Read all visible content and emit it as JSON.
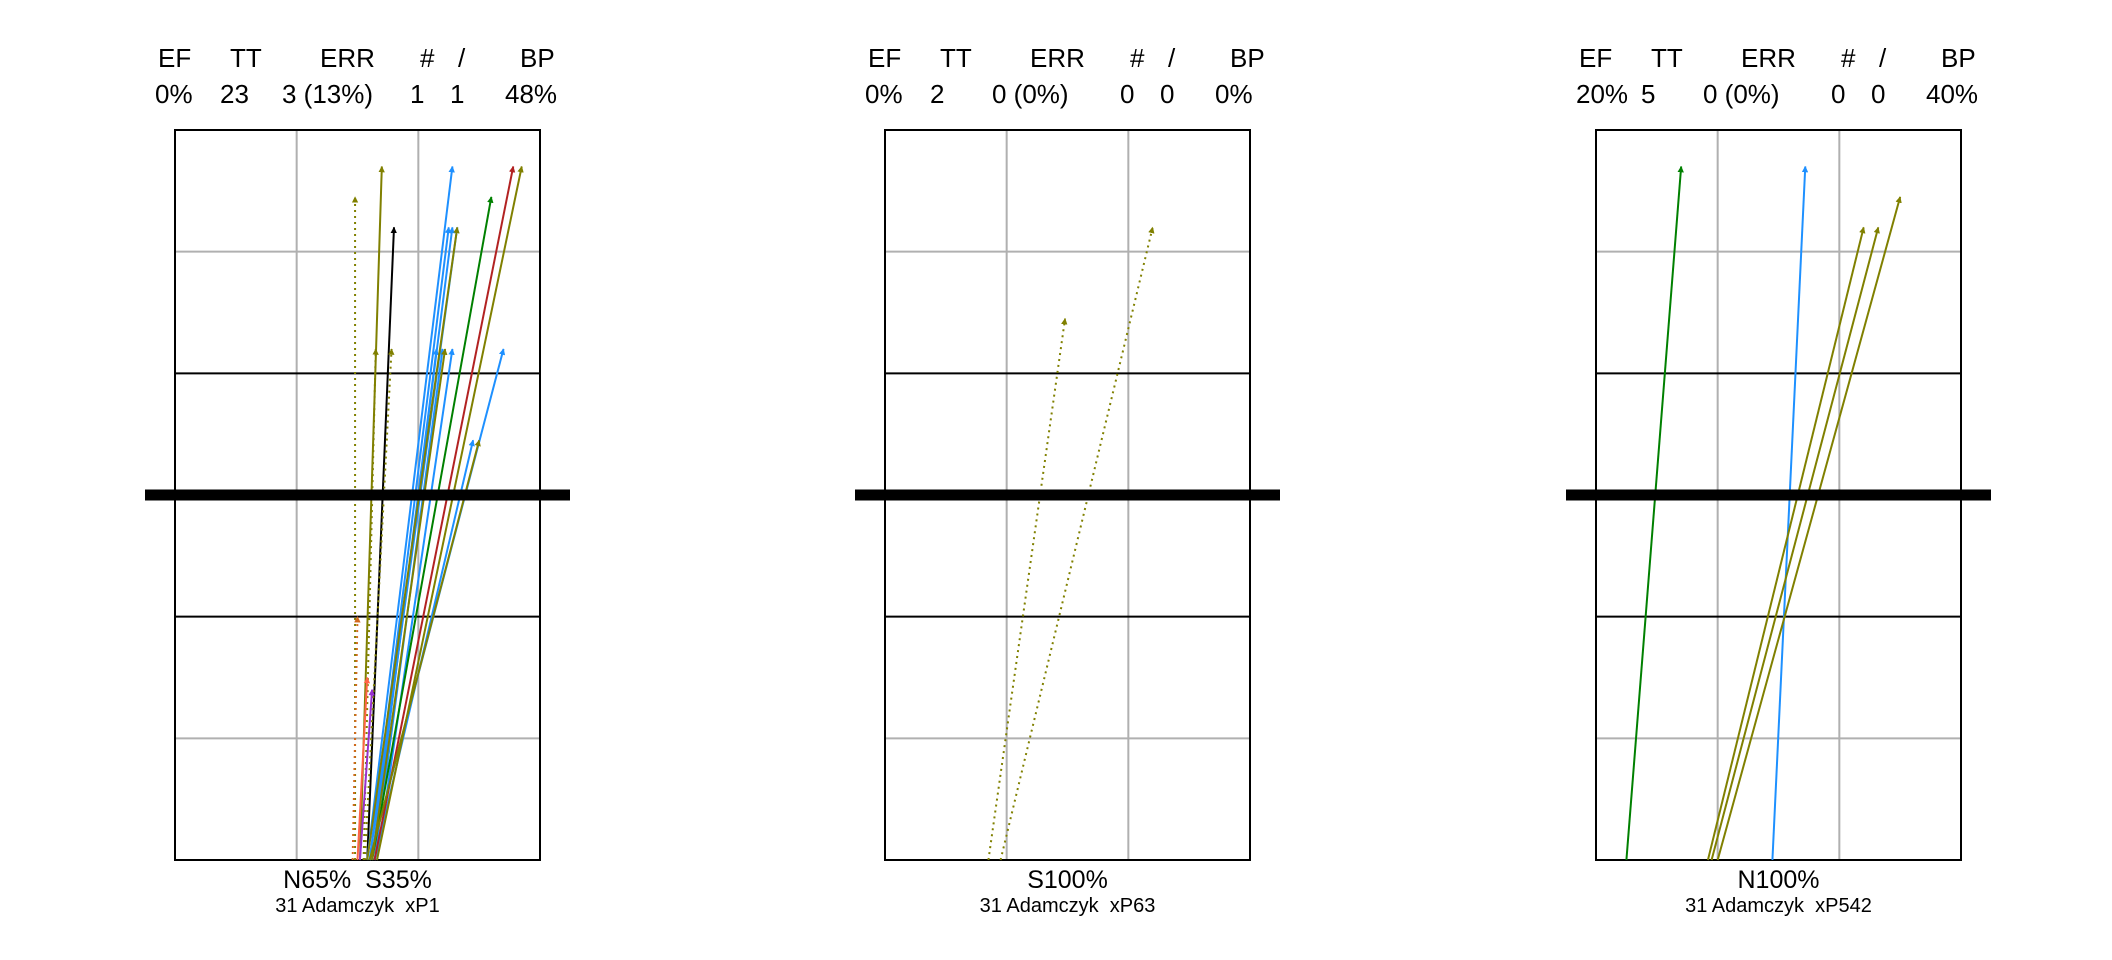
{
  "chart_data": [
    {
      "type": "scatter",
      "stats_header": [
        "EF",
        "TT",
        "ERR",
        "#",
        "/",
        "BP"
      ],
      "stats_values": [
        "0%",
        "23",
        "3 (13%)",
        "1",
        "1",
        "48%"
      ],
      "zone_label": "N65%  S35%",
      "player_label": "31 Adamczyk  xP1",
      "xlim": [
        0,
        3
      ],
      "ylim": [
        0,
        6
      ],
      "net_y": 3,
      "grid": true,
      "series": [
        {
          "color": "#808000",
          "style": "dotted",
          "values": [
            [
              1.48,
              0
            ],
            [
              1.48,
              5.45
            ]
          ]
        },
        {
          "color": "#808000",
          "style": "solid",
          "values": [
            [
              1.52,
              0
            ],
            [
              1.7,
              5.7
            ]
          ]
        },
        {
          "color": "#000000",
          "style": "solid",
          "values": [
            [
              1.58,
              0
            ],
            [
              1.8,
              5.2
            ]
          ]
        },
        {
          "color": "#808000",
          "style": "dotted",
          "values": [
            [
              1.55,
              0
            ],
            [
              1.65,
              4.2
            ]
          ]
        },
        {
          "color": "#808000",
          "style": "dotted",
          "values": [
            [
              1.56,
              0
            ],
            [
              1.78,
              4.2
            ]
          ]
        },
        {
          "color": "#1e90ff",
          "style": "solid",
          "values": [
            [
              1.58,
              0
            ],
            [
              2.28,
              5.7
            ]
          ]
        },
        {
          "color": "#1e90ff",
          "style": "solid",
          "values": [
            [
              1.6,
              0
            ],
            [
              2.25,
              5.2
            ]
          ]
        },
        {
          "color": "#1e90ff",
          "style": "solid",
          "values": [
            [
              1.62,
              0
            ],
            [
              2.28,
              5.2
            ]
          ]
        },
        {
          "color": "#1e90ff",
          "style": "solid",
          "values": [
            [
              1.6,
              0
            ],
            [
              2.32,
              5.2
            ]
          ]
        },
        {
          "color": "#1e90ff",
          "style": "solid",
          "values": [
            [
              1.64,
              0
            ],
            [
              2.2,
              4.2
            ]
          ]
        },
        {
          "color": "#1e90ff",
          "style": "solid",
          "values": [
            [
              1.66,
              0
            ],
            [
              2.28,
              4.2
            ]
          ]
        },
        {
          "color": "#1e90ff",
          "style": "solid",
          "values": [
            [
              1.62,
              0
            ],
            [
              2.15,
              4.2
            ]
          ]
        },
        {
          "color": "#1e90ff",
          "style": "solid",
          "values": [
            [
              1.6,
              0
            ],
            [
              2.7,
              4.2
            ]
          ]
        },
        {
          "color": "#1e90ff",
          "style": "solid",
          "values": [
            [
              1.64,
              0
            ],
            [
              2.45,
              3.45
            ]
          ]
        },
        {
          "color": "#808000",
          "style": "solid",
          "values": [
            [
              1.58,
              0
            ],
            [
              2.32,
              5.2
            ]
          ]
        },
        {
          "color": "#008000",
          "style": "solid",
          "values": [
            [
              1.62,
              0
            ],
            [
              2.6,
              5.45
            ]
          ]
        },
        {
          "color": "#b22222",
          "style": "solid",
          "values": [
            [
              1.64,
              0
            ],
            [
              2.78,
              5.7
            ]
          ]
        },
        {
          "color": "#808000",
          "style": "solid",
          "values": [
            [
              1.66,
              0
            ],
            [
              2.85,
              5.7
            ]
          ]
        },
        {
          "color": "#808000",
          "style": "solid",
          "values": [
            [
              1.6,
              0
            ],
            [
              2.5,
              3.45
            ]
          ]
        },
        {
          "color": "#808000",
          "style": "solid",
          "values": [
            [
              1.62,
              0
            ],
            [
              2.22,
              4.2
            ]
          ]
        },
        {
          "color": "#d2691e",
          "style": "dotted",
          "values": [
            [
              1.46,
              0
            ],
            [
              1.5,
              2.0
            ]
          ]
        },
        {
          "color": "#ff6347",
          "style": "solid",
          "values": [
            [
              1.5,
              0
            ],
            [
              1.58,
              1.5
            ]
          ]
        },
        {
          "color": "#9932cc",
          "style": "solid",
          "values": [
            [
              1.52,
              0
            ],
            [
              1.62,
              1.4
            ]
          ]
        }
      ]
    },
    {
      "type": "scatter",
      "stats_header": [
        "EF",
        "TT",
        "ERR",
        "#",
        "/",
        "BP"
      ],
      "stats_values": [
        "0%",
        "2",
        "0 (0%)",
        "0",
        "0",
        "0%"
      ],
      "zone_label": "S100%",
      "player_label": "31 Adamczyk  xP63",
      "xlim": [
        0,
        3
      ],
      "ylim": [
        0,
        6
      ],
      "net_y": 3,
      "grid": true,
      "series": [
        {
          "color": "#808000",
          "style": "dotted",
          "values": [
            [
              0.85,
              0
            ],
            [
              1.48,
              4.45
            ]
          ]
        },
        {
          "color": "#808000",
          "style": "dotted",
          "values": [
            [
              0.95,
              0
            ],
            [
              2.2,
              5.2
            ]
          ]
        }
      ]
    },
    {
      "type": "scatter",
      "stats_header": [
        "EF",
        "TT",
        "ERR",
        "#",
        "/",
        "BP"
      ],
      "stats_values": [
        "20%",
        "5",
        "0 (0%)",
        "0",
        "0",
        "40%"
      ],
      "zone_label": "N100%",
      "player_label": "31 Adamczyk  xP542",
      "xlim": [
        0,
        3
      ],
      "ylim": [
        0,
        6
      ],
      "net_y": 3,
      "grid": true,
      "series": [
        {
          "color": "#008000",
          "style": "solid",
          "values": [
            [
              0.25,
              0
            ],
            [
              0.7,
              5.7
            ]
          ]
        },
        {
          "color": "#1e90ff",
          "style": "solid",
          "values": [
            [
              1.45,
              0
            ],
            [
              1.72,
              5.7
            ]
          ]
        },
        {
          "color": "#808000",
          "style": "solid",
          "values": [
            [
              0.92,
              0
            ],
            [
              2.2,
              5.2
            ]
          ]
        },
        {
          "color": "#808000",
          "style": "solid",
          "values": [
            [
              0.95,
              0
            ],
            [
              2.32,
              5.2
            ]
          ]
        },
        {
          "color": "#808000",
          "style": "solid",
          "values": [
            [
              1.0,
              0
            ],
            [
              2.5,
              5.45
            ]
          ]
        }
      ]
    }
  ]
}
